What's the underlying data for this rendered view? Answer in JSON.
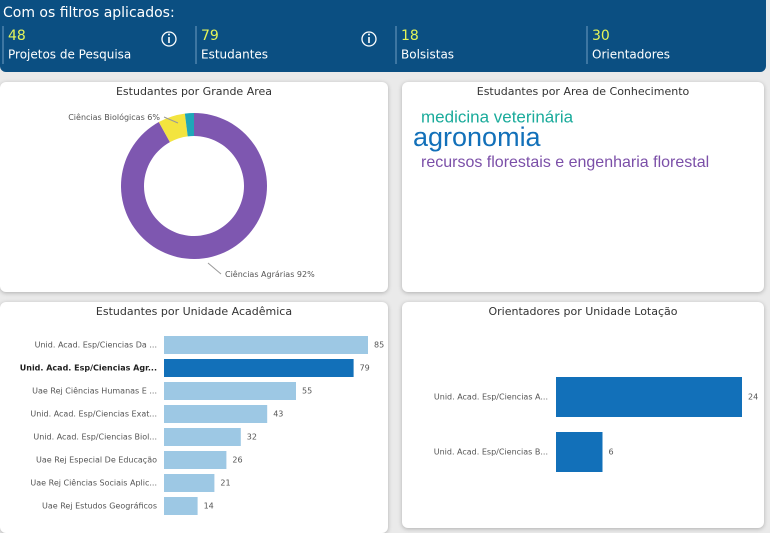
{
  "header": {
    "title": "Com os filtros aplicados:",
    "cards": [
      {
        "value": "48",
        "label": "Projetos de Pesquisa"
      },
      {
        "value": "79",
        "label": "Estudantes"
      },
      {
        "value": "18",
        "label": "Bolsistas"
      },
      {
        "value": "30",
        "label": "Orientadores"
      }
    ]
  },
  "chart_data": [
    {
      "type": "donut",
      "title": "Estudantes por Grande Area",
      "categories": [
        "Ciências Agrárias",
        "Ciências Biológicas",
        null
      ],
      "values": [
        92,
        6,
        2
      ],
      "value_labels": [
        "92%",
        "6%",
        null
      ],
      "colors": [
        "#7e57b0",
        "#f3e43f",
        "#1fa7b8"
      ]
    },
    {
      "type": "wordcloud",
      "title": "Estudantes por Area de Conhecimento",
      "words": [
        "medicina veterinária",
        "agronomia",
        "recursos florestais e engenharia florestal"
      ],
      "colors": [
        "#1aab9b",
        "#1270b9",
        "#7b4fa8"
      ]
    },
    {
      "type": "bar",
      "title": "Estudantes por Unidade Acadêmica",
      "categories": [
        "Unid. Acad. Esp/Ciencias Da ...",
        "Unid. Acad. Esp/Ciencias Agr...",
        "Uae Rej Ciências Humanas E ...",
        "Unid. Acad. Esp/Ciencias Exat...",
        "Unid. Acad. Esp/Ciencias Biol...",
        "Uae Rej Especial De Educação",
        "Uae Rej Ciências Sociais Aplic...",
        "Uae Rej Estudos Geográficos"
      ],
      "values": [
        85,
        79,
        55,
        43,
        32,
        26,
        21,
        14
      ],
      "colors": [
        "#9dc8e4",
        "#1270b9",
        "#9dc8e4",
        "#9dc8e4",
        "#9dc8e4",
        "#9dc8e4",
        "#9dc8e4",
        "#9dc8e4"
      ]
    },
    {
      "type": "bar",
      "title": "Orientadores por Unidade Lotação",
      "categories": [
        "Unid. Acad. Esp/Ciencias A...",
        "Unid. Acad. Esp/Ciencias B..."
      ],
      "values": [
        24,
        6
      ],
      "colors": [
        "#1270b9",
        "#1270b9"
      ]
    }
  ]
}
